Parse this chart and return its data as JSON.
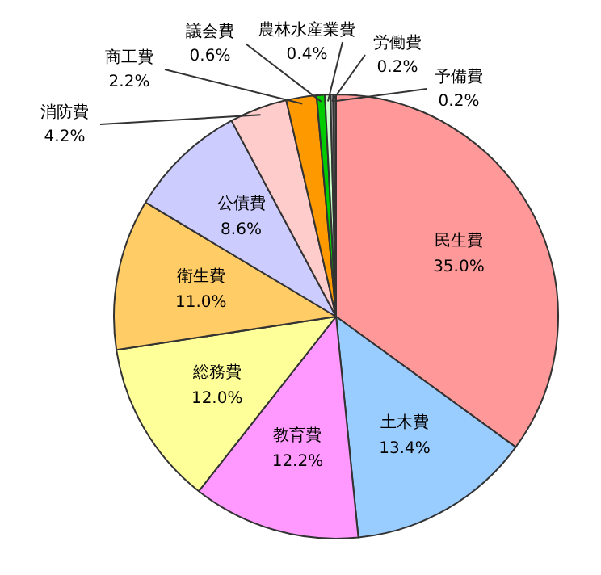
{
  "chart_data": {
    "type": "pie",
    "categories": [
      "民生費",
      "土木費",
      "教育費",
      "総務費",
      "衛生費",
      "公債費",
      "消防費",
      "商工費",
      "議会費",
      "農林水産業費",
      "労働費",
      "予備費"
    ],
    "values": [
      35.0,
      13.4,
      12.2,
      12.0,
      11.0,
      8.6,
      4.2,
      2.2,
      0.6,
      0.4,
      0.2,
      0.2
    ],
    "value_labels": [
      "35.0%",
      "13.4%",
      "12.2%",
      "12.0%",
      "11.0%",
      "8.6%",
      "4.2%",
      "2.2%",
      "0.6%",
      "0.4%",
      "0.2%",
      "0.2%"
    ],
    "colors": [
      "#ff9999",
      "#99ccff",
      "#ff99ff",
      "#ffff99",
      "#ffcc66",
      "#ccccff",
      "#ffcccc",
      "#ff9900",
      "#00cc00",
      "#ccffcc",
      "#999999",
      "#555555"
    ],
    "legend": false
  }
}
